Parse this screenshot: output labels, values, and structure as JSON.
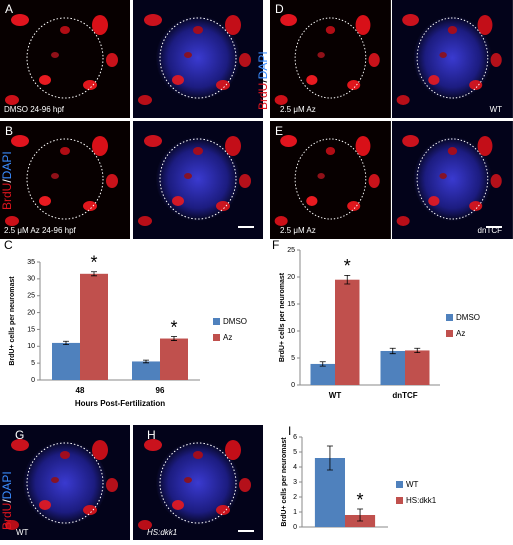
{
  "panels": {
    "a": "A",
    "b": "B",
    "c": "C",
    "d": "D",
    "e": "E",
    "f": "F",
    "g": "G",
    "h": "H",
    "i": "I"
  },
  "image_labels": {
    "a": "DMSO 24-96 hpf",
    "b": "2.5 μM Az  24-96 hpf",
    "d_left": "2.5 μM Az",
    "d_right": "WT",
    "e_left": "2.5 μM Az",
    "e_right": "dnTCF",
    "g": "WT",
    "h": "HS:dkk1"
  },
  "stain_label": {
    "brdu": "BrdU",
    "slash": "/",
    "dapi": "DAPI"
  },
  "chart_data": [
    {
      "type": "bar",
      "categories": [
        "48",
        "96"
      ],
      "xlabel": "Hours Post-Fertilization",
      "ylabel": "BrdU+ cells per neuromast",
      "ylim": [
        0,
        35
      ],
      "yticks": [
        0,
        5,
        10,
        15,
        20,
        25,
        30,
        35
      ],
      "series": [
        {
          "name": "DMSO",
          "color": "#4f81bd",
          "values": [
            11,
            5.5
          ],
          "errors": [
            0.5,
            0.4
          ]
        },
        {
          "name": "Az",
          "color": "#c0504d",
          "values": [
            31.5,
            12.3
          ],
          "errors": [
            0.6,
            0.6
          ],
          "annotations": [
            "*",
            "*"
          ]
        }
      ]
    },
    {
      "type": "bar",
      "categories": [
        "WT",
        "dnTCF"
      ],
      "ylabel": "BrdU+ cells per neuromast",
      "ylim": [
        0,
        25
      ],
      "yticks": [
        0,
        5,
        10,
        15,
        20,
        25
      ],
      "series": [
        {
          "name": "DMSO",
          "color": "#4f81bd",
          "values": [
            3.9,
            6.3
          ],
          "errors": [
            0.4,
            0.5
          ]
        },
        {
          "name": "Az",
          "color": "#c0504d",
          "values": [
            19.5,
            6.4
          ],
          "errors": [
            0.8,
            0.4
          ],
          "annotations": [
            "*",
            null
          ]
        }
      ]
    },
    {
      "type": "bar",
      "categories": [
        null
      ],
      "ylabel": "BrdU+ cells per neuromast",
      "ylim": [
        0,
        6
      ],
      "yticks": [
        0,
        1,
        2,
        3,
        4,
        5,
        6
      ],
      "series": [
        {
          "name": "WT",
          "color": "#4f81bd",
          "values": [
            4.6
          ],
          "errors": [
            0.8
          ]
        },
        {
          "name": "HS:dkk1",
          "color": "#c0504d",
          "values": [
            0.8
          ],
          "errors": [
            0.4
          ],
          "annotations": [
            "*"
          ]
        }
      ]
    }
  ]
}
